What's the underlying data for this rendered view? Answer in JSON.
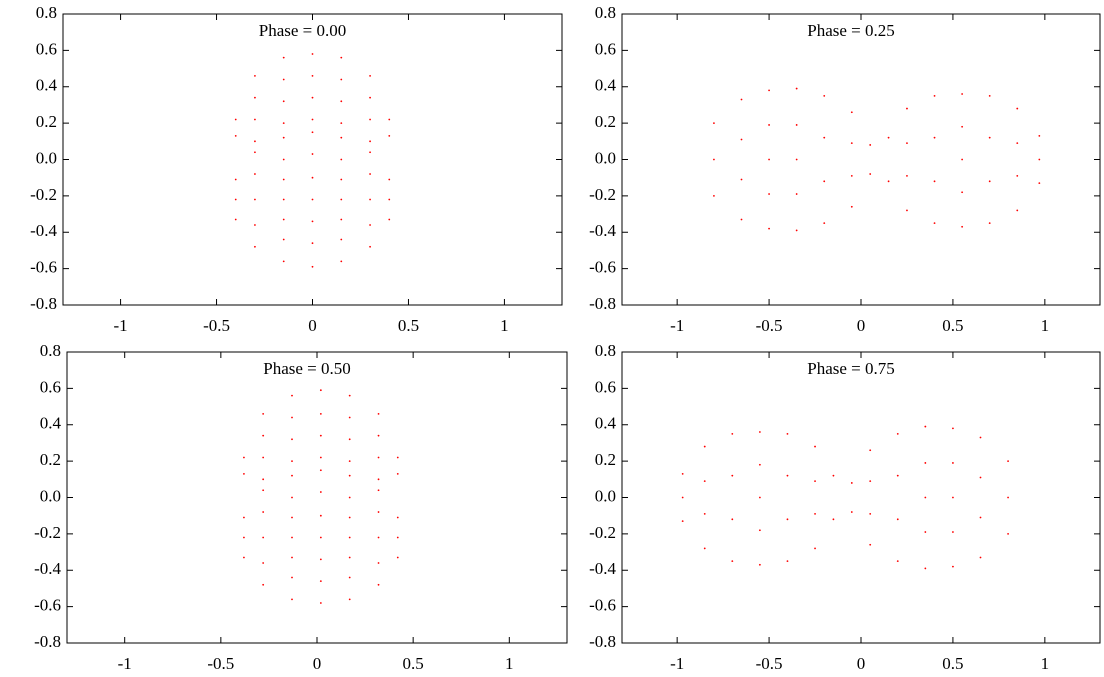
{
  "chart_data": [
    {
      "type": "scatter",
      "title": "Phase = 0.00",
      "series": [
        {
          "color": "#ff0000",
          "x": [
            -0.4,
            -0.4,
            -0.4,
            -0.3,
            -0.3,
            -0.3,
            -0.3,
            -0.3,
            -0.15,
            -0.15,
            -0.15,
            -0.15,
            -0.15,
            -0.15,
            -0.15,
            0,
            0,
            0,
            0,
            0,
            0,
            0,
            0.15,
            0.15,
            0.15,
            0.15,
            0.15,
            0.15,
            0.15,
            0.3,
            0.3,
            0.3,
            0.3,
            0.3,
            0.4,
            0.4,
            0.4,
            -0.4,
            -0.4,
            -0.3,
            -0.3,
            -0.3,
            -0.3,
            -0.15,
            -0.15,
            -0.15,
            -0.15,
            0,
            0,
            0,
            0,
            0.15,
            0.15,
            0.15,
            0.15,
            0.3,
            0.3,
            0.3,
            0.3,
            0.4,
            0.4
          ],
          "y": [
            -0.11,
            -0.22,
            -0.33,
            0.04,
            -0.08,
            -0.22,
            -0.36,
            -0.48,
            0.12,
            0,
            -0.11,
            -0.22,
            -0.33,
            -0.44,
            -0.56,
            0.15,
            0.03,
            -0.1,
            -0.22,
            -0.34,
            -0.46,
            -0.59,
            0.12,
            0,
            -0.11,
            -0.22,
            -0.33,
            -0.44,
            -0.56,
            0.04,
            -0.08,
            -0.22,
            -0.36,
            -0.48,
            -0.11,
            -0.22,
            -0.33,
            0.22,
            0.13,
            0.46,
            0.34,
            0.22,
            0.1,
            0.56,
            0.44,
            0.32,
            0.2,
            0.58,
            0.46,
            0.34,
            0.22,
            0.56,
            0.44,
            0.32,
            0.2,
            0.46,
            0.34,
            0.22,
            0.1,
            0.22,
            0.13
          ]
        }
      ],
      "xlim": [
        -1.3,
        1.3
      ],
      "ylim": [
        -0.8,
        0.8
      ],
      "xticks": [
        -1,
        -0.5,
        0,
        0.5,
        1
      ],
      "yticks": [
        -0.8,
        -0.6,
        -0.4,
        -0.2,
        {
          "value": 0,
          "label": "0.0"
        },
        0.2,
        0.4,
        0.6,
        0.8
      ]
    },
    {
      "type": "scatter",
      "title": "Phase = 0.25",
      "series": [
        {
          "color": "#ff0000",
          "x": [
            -0.8,
            -0.8,
            -0.8,
            -0.65,
            -0.65,
            -0.65,
            -0.65,
            -0.5,
            -0.5,
            -0.5,
            -0.5,
            -0.5,
            -0.35,
            -0.35,
            -0.35,
            -0.35,
            -0.35,
            -0.2,
            -0.2,
            -0.2,
            -0.2,
            -0.05,
            -0.05,
            -0.05,
            -0.05,
            0.05,
            0.05,
            0.15,
            0.15,
            0.25,
            0.25,
            0.25,
            0.25,
            0.4,
            0.4,
            0.4,
            0.4,
            0.55,
            0.55,
            0.55,
            0.55,
            0.55,
            0.7,
            0.7,
            0.7,
            0.7,
            0.85,
            0.85,
            0.85,
            0.85,
            0.97,
            0.97,
            0.97
          ],
          "y": [
            0.2,
            0,
            -0.2,
            0.33,
            0.11,
            -0.11,
            -0.33,
            0.38,
            0.19,
            0,
            -0.19,
            -0.38,
            0.39,
            0.19,
            0,
            -0.19,
            -0.39,
            0.35,
            0.12,
            -0.12,
            -0.35,
            0.26,
            0.09,
            -0.09,
            -0.26,
            0.08,
            -0.08,
            0.12,
            -0.12,
            0.28,
            0.09,
            -0.09,
            -0.28,
            0.35,
            0.12,
            -0.12,
            -0.35,
            0.36,
            0.18,
            0,
            -0.18,
            -0.37,
            0.35,
            0.12,
            -0.12,
            -0.35,
            0.28,
            0.09,
            -0.09,
            -0.28,
            0.13,
            0,
            -0.13
          ]
        }
      ],
      "xlim": [
        -1.3,
        1.3
      ],
      "ylim": [
        -0.8,
        0.8
      ],
      "xticks": [
        -1,
        -0.5,
        0,
        0.5,
        1
      ],
      "yticks": [
        -0.8,
        -0.6,
        -0.4,
        -0.2,
        {
          "value": 0,
          "label": "0.0"
        },
        0.2,
        0.4,
        0.6,
        0.8
      ]
    },
    {
      "type": "scatter",
      "title": "Phase = 0.50",
      "series": [
        {
          "color": "#ff0000",
          "x": [
            -0.38,
            -0.38,
            -0.38,
            -0.28,
            -0.28,
            -0.28,
            -0.28,
            -0.28,
            -0.13,
            -0.13,
            -0.13,
            -0.13,
            -0.13,
            -0.13,
            -0.13,
            0.02,
            0.02,
            0.02,
            0.02,
            0.02,
            0.02,
            0.02,
            0.17,
            0.17,
            0.17,
            0.17,
            0.17,
            0.17,
            0.17,
            0.32,
            0.32,
            0.32,
            0.32,
            0.32,
            0.42,
            0.42,
            0.42,
            -0.38,
            -0.38,
            -0.28,
            -0.28,
            -0.28,
            -0.28,
            -0.13,
            -0.13,
            -0.13,
            -0.13,
            0.02,
            0.02,
            0.02,
            0.02,
            0.17,
            0.17,
            0.17,
            0.17,
            0.32,
            0.32,
            0.32,
            0.32,
            0.42,
            0.42
          ],
          "y": [
            -0.11,
            -0.22,
            -0.33,
            0.04,
            -0.08,
            -0.22,
            -0.36,
            -0.48,
            0.12,
            0,
            -0.11,
            -0.22,
            -0.33,
            -0.44,
            -0.56,
            0.15,
            0.03,
            -0.1,
            -0.22,
            -0.34,
            -0.46,
            -0.58,
            0.12,
            0,
            -0.11,
            -0.22,
            -0.33,
            -0.44,
            -0.56,
            0.04,
            -0.08,
            -0.22,
            -0.36,
            -0.48,
            -0.11,
            -0.22,
            -0.33,
            0.22,
            0.13,
            0.46,
            0.34,
            0.22,
            0.1,
            0.56,
            0.44,
            0.32,
            0.2,
            0.59,
            0.46,
            0.34,
            0.22,
            0.56,
            0.44,
            0.32,
            0.2,
            0.46,
            0.34,
            0.22,
            0.1,
            0.22,
            0.13
          ]
        }
      ],
      "xlim": [
        -1.3,
        1.3
      ],
      "ylim": [
        -0.8,
        0.8
      ],
      "xticks": [
        -1,
        -0.5,
        0,
        0.5,
        1
      ],
      "yticks": [
        -0.8,
        -0.6,
        -0.4,
        -0.2,
        {
          "value": 0,
          "label": "0.0"
        },
        0.2,
        0.4,
        0.6,
        0.8
      ]
    },
    {
      "type": "scatter",
      "title": "Phase = 0.75",
      "series": [
        {
          "color": "#ff0000",
          "x": [
            0.8,
            0.8,
            0.8,
            0.65,
            0.65,
            0.65,
            0.65,
            0.5,
            0.5,
            0.5,
            0.5,
            0.5,
            0.35,
            0.35,
            0.35,
            0.35,
            0.35,
            0.2,
            0.2,
            0.2,
            0.2,
            0.05,
            0.05,
            0.05,
            0.05,
            -0.05,
            -0.05,
            -0.15,
            -0.15,
            -0.25,
            -0.25,
            -0.25,
            -0.25,
            -0.4,
            -0.4,
            -0.4,
            -0.4,
            -0.55,
            -0.55,
            -0.55,
            -0.55,
            -0.55,
            -0.7,
            -0.7,
            -0.7,
            -0.7,
            -0.85,
            -0.85,
            -0.85,
            -0.85,
            -0.97,
            -0.97,
            -0.97
          ],
          "y": [
            0.2,
            0,
            -0.2,
            0.33,
            0.11,
            -0.11,
            -0.33,
            0.38,
            0.19,
            0,
            -0.19,
            -0.38,
            0.39,
            0.19,
            0,
            -0.19,
            -0.39,
            0.35,
            0.12,
            -0.12,
            -0.35,
            0.26,
            0.09,
            -0.09,
            -0.26,
            0.08,
            -0.08,
            0.12,
            -0.12,
            0.28,
            0.09,
            -0.09,
            -0.28,
            0.35,
            0.12,
            -0.12,
            -0.35,
            0.36,
            0.18,
            0,
            -0.18,
            -0.37,
            0.35,
            0.12,
            -0.12,
            -0.35,
            0.28,
            0.09,
            -0.09,
            -0.28,
            0.13,
            0,
            -0.13
          ]
        }
      ],
      "xlim": [
        -1.3,
        1.3
      ],
      "ylim": [
        -0.8,
        0.8
      ],
      "xticks": [
        -1,
        -0.5,
        0,
        0.5,
        1
      ],
      "yticks": [
        -0.8,
        -0.6,
        -0.4,
        -0.2,
        {
          "value": 0,
          "label": "0.0"
        },
        0.2,
        0.4,
        0.6,
        0.8
      ]
    }
  ]
}
